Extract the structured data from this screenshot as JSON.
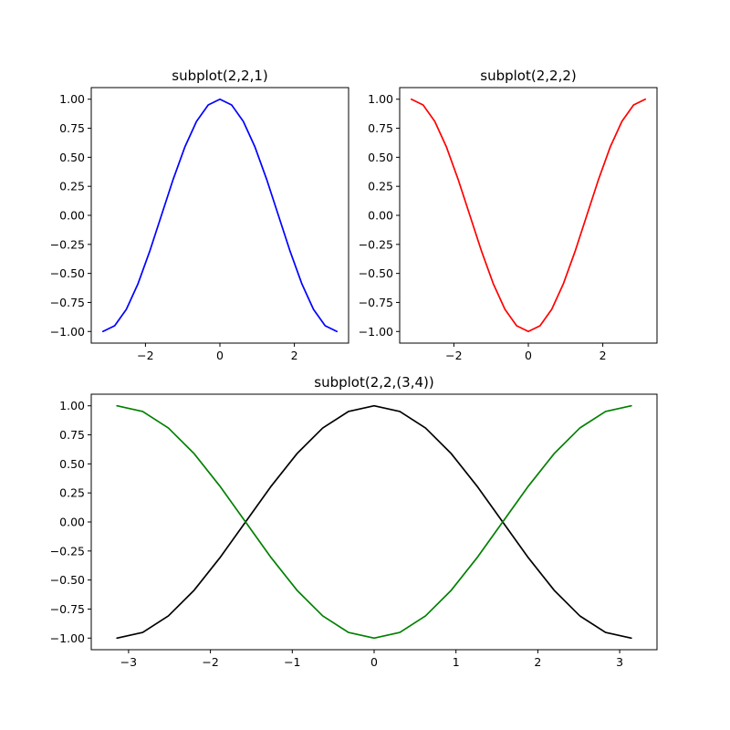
{
  "chart_data": [
    {
      "type": "line",
      "title": "subplot(2,2,1)",
      "xlim": [
        -3.456,
        3.456
      ],
      "ylim": [
        -1.1,
        1.1
      ],
      "xticks": [
        -2,
        0,
        2
      ],
      "xtick_labels": [
        "−2",
        "0",
        "2"
      ],
      "yticks": [
        -1.0,
        -0.75,
        -0.5,
        -0.25,
        0.0,
        0.25,
        0.5,
        0.75,
        1.0
      ],
      "ytick_labels": [
        "−1.00",
        "−0.75",
        "−0.50",
        "−0.25",
        "0.00",
        "0.25",
        "0.50",
        "0.75",
        "1.00"
      ],
      "series": [
        {
          "color": "#0000ff",
          "x": [
            -3.1416,
            -2.8274,
            -2.5133,
            -2.1991,
            -1.885,
            -1.5708,
            -1.2566,
            -0.9425,
            -0.6283,
            -0.3142,
            0.0,
            0.3142,
            0.6283,
            0.9425,
            1.2566,
            1.5708,
            1.885,
            2.1991,
            2.5133,
            2.8274,
            3.1416
          ],
          "y": [
            -1.0,
            -0.951,
            -0.809,
            -0.588,
            -0.309,
            0.0,
            0.309,
            0.588,
            0.809,
            0.951,
            1.0,
            0.951,
            0.809,
            0.588,
            0.309,
            0.0,
            -0.309,
            -0.588,
            -0.809,
            -0.951,
            -1.0
          ]
        }
      ]
    },
    {
      "type": "line",
      "title": "subplot(2,2,2)",
      "xlim": [
        -3.456,
        3.456
      ],
      "ylim": [
        -1.1,
        1.1
      ],
      "xticks": [
        -2,
        0,
        2
      ],
      "xtick_labels": [
        "−2",
        "0",
        "2"
      ],
      "yticks": [
        -1.0,
        -0.75,
        -0.5,
        -0.25,
        0.0,
        0.25,
        0.5,
        0.75,
        1.0
      ],
      "ytick_labels": [
        "−1.00",
        "−0.75",
        "−0.50",
        "−0.25",
        "0.00",
        "0.25",
        "0.50",
        "0.75",
        "1.00"
      ],
      "series": [
        {
          "color": "#ff0000",
          "x": [
            -3.1416,
            -2.8274,
            -2.5133,
            -2.1991,
            -1.885,
            -1.5708,
            -1.2566,
            -0.9425,
            -0.6283,
            -0.3142,
            0.0,
            0.3142,
            0.6283,
            0.9425,
            1.2566,
            1.5708,
            1.885,
            2.1991,
            2.5133,
            2.8274,
            3.1416
          ],
          "y": [
            1.0,
            0.951,
            0.809,
            0.588,
            0.309,
            0.0,
            -0.309,
            -0.588,
            -0.809,
            -0.951,
            -1.0,
            -0.951,
            -0.809,
            -0.588,
            -0.309,
            0.0,
            0.309,
            0.588,
            0.809,
            0.951,
            1.0
          ]
        }
      ]
    },
    {
      "type": "line",
      "title": "subplot(2,2,(3,4))",
      "xlim": [
        -3.456,
        3.456
      ],
      "ylim": [
        -1.1,
        1.1
      ],
      "xticks": [
        -3,
        -2,
        -1,
        0,
        1,
        2,
        3
      ],
      "xtick_labels": [
        "−3",
        "−2",
        "−1",
        "0",
        "1",
        "2",
        "3"
      ],
      "yticks": [
        -1.0,
        -0.75,
        -0.5,
        -0.25,
        0.0,
        0.25,
        0.5,
        0.75,
        1.0
      ],
      "ytick_labels": [
        "−1.00",
        "−0.75",
        "−0.50",
        "−0.25",
        "0.00",
        "0.25",
        "0.50",
        "0.75",
        "1.00"
      ],
      "series": [
        {
          "color": "#000000",
          "x": [
            -3.1416,
            -2.8274,
            -2.5133,
            -2.1991,
            -1.885,
            -1.5708,
            -1.2566,
            -0.9425,
            -0.6283,
            -0.3142,
            0.0,
            0.3142,
            0.6283,
            0.9425,
            1.2566,
            1.5708,
            1.885,
            2.1991,
            2.5133,
            2.8274,
            3.1416
          ],
          "y": [
            -1.0,
            -0.951,
            -0.809,
            -0.588,
            -0.309,
            0.0,
            0.309,
            0.588,
            0.809,
            0.951,
            1.0,
            0.951,
            0.809,
            0.588,
            0.309,
            0.0,
            -0.309,
            -0.588,
            -0.809,
            -0.951,
            -1.0
          ]
        },
        {
          "color": "#008000",
          "x": [
            -3.1416,
            -2.8274,
            -2.5133,
            -2.1991,
            -1.885,
            -1.5708,
            -1.2566,
            -0.9425,
            -0.6283,
            -0.3142,
            0.0,
            0.3142,
            0.6283,
            0.9425,
            1.2566,
            1.5708,
            1.885,
            2.1991,
            2.5133,
            2.8274,
            3.1416
          ],
          "y": [
            1.0,
            0.951,
            0.809,
            0.588,
            0.309,
            0.0,
            -0.309,
            -0.588,
            -0.809,
            -0.951,
            -1.0,
            -0.951,
            -0.809,
            -0.588,
            -0.309,
            0.0,
            0.309,
            0.588,
            0.809,
            0.951,
            1.0
          ]
        }
      ]
    }
  ]
}
